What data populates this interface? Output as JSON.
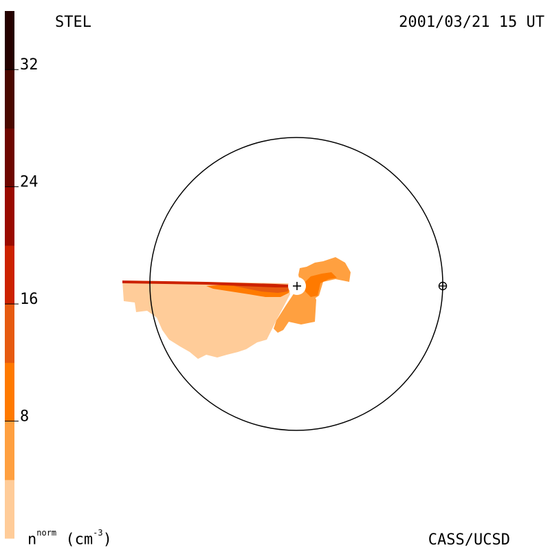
{
  "header": {
    "source": "STEL",
    "timestamp": "2001/03/21 15 UT"
  },
  "footer": {
    "credit": "CASS/UCSD",
    "units_symbol": "n",
    "units_superscript": "norm",
    "units_unit": "(cm",
    "units_exponent": "-3",
    "units_close": ")"
  },
  "chart_data": {
    "type": "heatmap",
    "colorbar": {
      "orientation": "vertical",
      "placement": "left",
      "range": [
        0,
        36
      ],
      "ticks": [
        {
          "value": 8,
          "label": "8"
        },
        {
          "value": 16,
          "label": "16"
        },
        {
          "value": 24,
          "label": "24"
        },
        {
          "value": 32,
          "label": "32"
        }
      ],
      "levels": [
        {
          "from": 0,
          "to": 4,
          "color": "#ffcc99"
        },
        {
          "from": 4,
          "to": 8,
          "color": "#ffa040"
        },
        {
          "from": 8,
          "to": 12,
          "color": "#ff7a00"
        },
        {
          "from": 12,
          "to": 16,
          "color": "#e65a10"
        },
        {
          "from": 16,
          "to": 20,
          "color": "#cc2200"
        },
        {
          "from": 20,
          "to": 24,
          "color": "#9a0a00"
        },
        {
          "from": 24,
          "to": 28,
          "color": "#6e0600"
        },
        {
          "from": 28,
          "to": 32,
          "color": "#4a0800"
        },
        {
          "from": 32,
          "to": 36,
          "color": "#250100"
        }
      ]
    },
    "orbit_circle": true,
    "sun_marker": "plus",
    "earth_marker": "circle-plus",
    "density_regions": [
      {
        "name": "outer-plume",
        "level": 1
      },
      {
        "name": "inner-plume",
        "level": 2
      },
      {
        "name": "core",
        "level": 3
      },
      {
        "name": "rim",
        "level": 4
      },
      {
        "name": "streak",
        "level": 5
      },
      {
        "name": "ne-lobe",
        "level": 2
      },
      {
        "name": "ne-core",
        "level": 3
      }
    ]
  }
}
